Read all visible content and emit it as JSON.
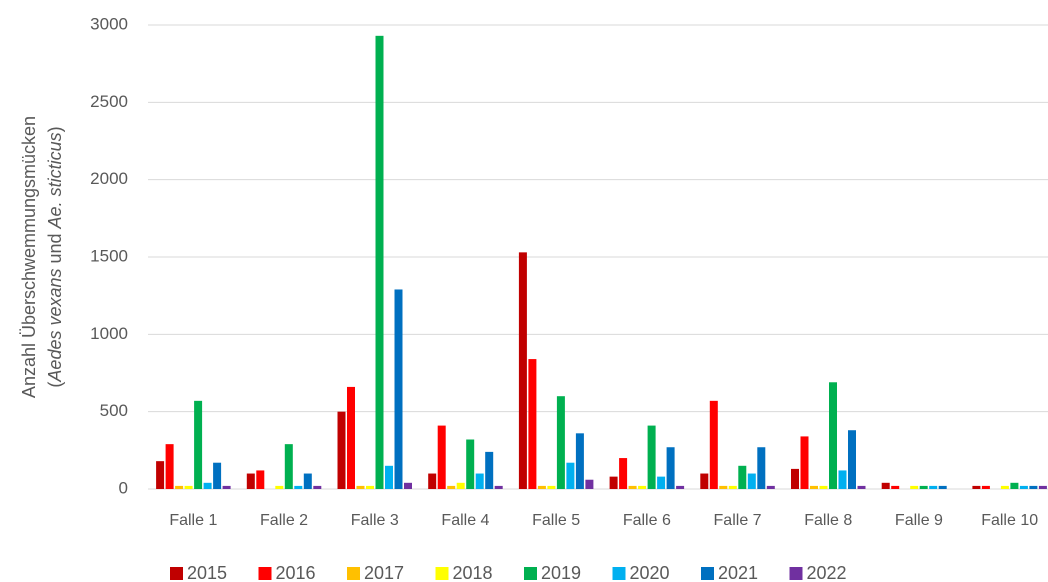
{
  "chart_data": {
    "type": "bar",
    "y_label": {
      "line1": "Anzahl Überschwemmungsmücken",
      "line2": [
        "(",
        "Aedes vexans",
        " und ",
        "Ae. sticticus",
        ")"
      ]
    },
    "categories": [
      "Falle 1",
      "Falle 2",
      "Falle 3",
      "Falle 4",
      "Falle 5",
      "Falle 6",
      "Falle 7",
      "Falle 8",
      "Falle 9",
      "Falle 10"
    ],
    "series": [
      {
        "name": "2015",
        "color": "#c00000",
        "values": [
          180,
          100,
          500,
          100,
          1530,
          80,
          100,
          130,
          40,
          20
        ]
      },
      {
        "name": "2016",
        "color": "#ff0000",
        "values": [
          290,
          120,
          660,
          410,
          840,
          200,
          570,
          340,
          20,
          20
        ]
      },
      {
        "name": "2017",
        "color": "#ffc000",
        "values": [
          20,
          0,
          20,
          20,
          20,
          20,
          20,
          20,
          0,
          0
        ]
      },
      {
        "name": "2018",
        "color": "#ffff00",
        "values": [
          20,
          20,
          20,
          40,
          20,
          20,
          20,
          20,
          20,
          20
        ]
      },
      {
        "name": "2019",
        "color": "#00b050",
        "values": [
          570,
          290,
          2930,
          320,
          600,
          410,
          150,
          690,
          20,
          40
        ]
      },
      {
        "name": "2020",
        "color": "#00b0f0",
        "values": [
          40,
          20,
          150,
          100,
          170,
          80,
          100,
          120,
          20,
          20
        ]
      },
      {
        "name": "2021",
        "color": "#0070c0",
        "values": [
          170,
          100,
          1290,
          240,
          360,
          270,
          270,
          380,
          20,
          20
        ]
      },
      {
        "name": "2022",
        "color": "#7030a0",
        "values": [
          20,
          20,
          40,
          20,
          60,
          20,
          20,
          20,
          0,
          20
        ]
      }
    ],
    "ylim": [
      0,
      3000
    ],
    "yticks": [
      0,
      500,
      1000,
      1500,
      2000,
      2500,
      3000
    ],
    "grid": true,
    "legend": "bottom"
  }
}
